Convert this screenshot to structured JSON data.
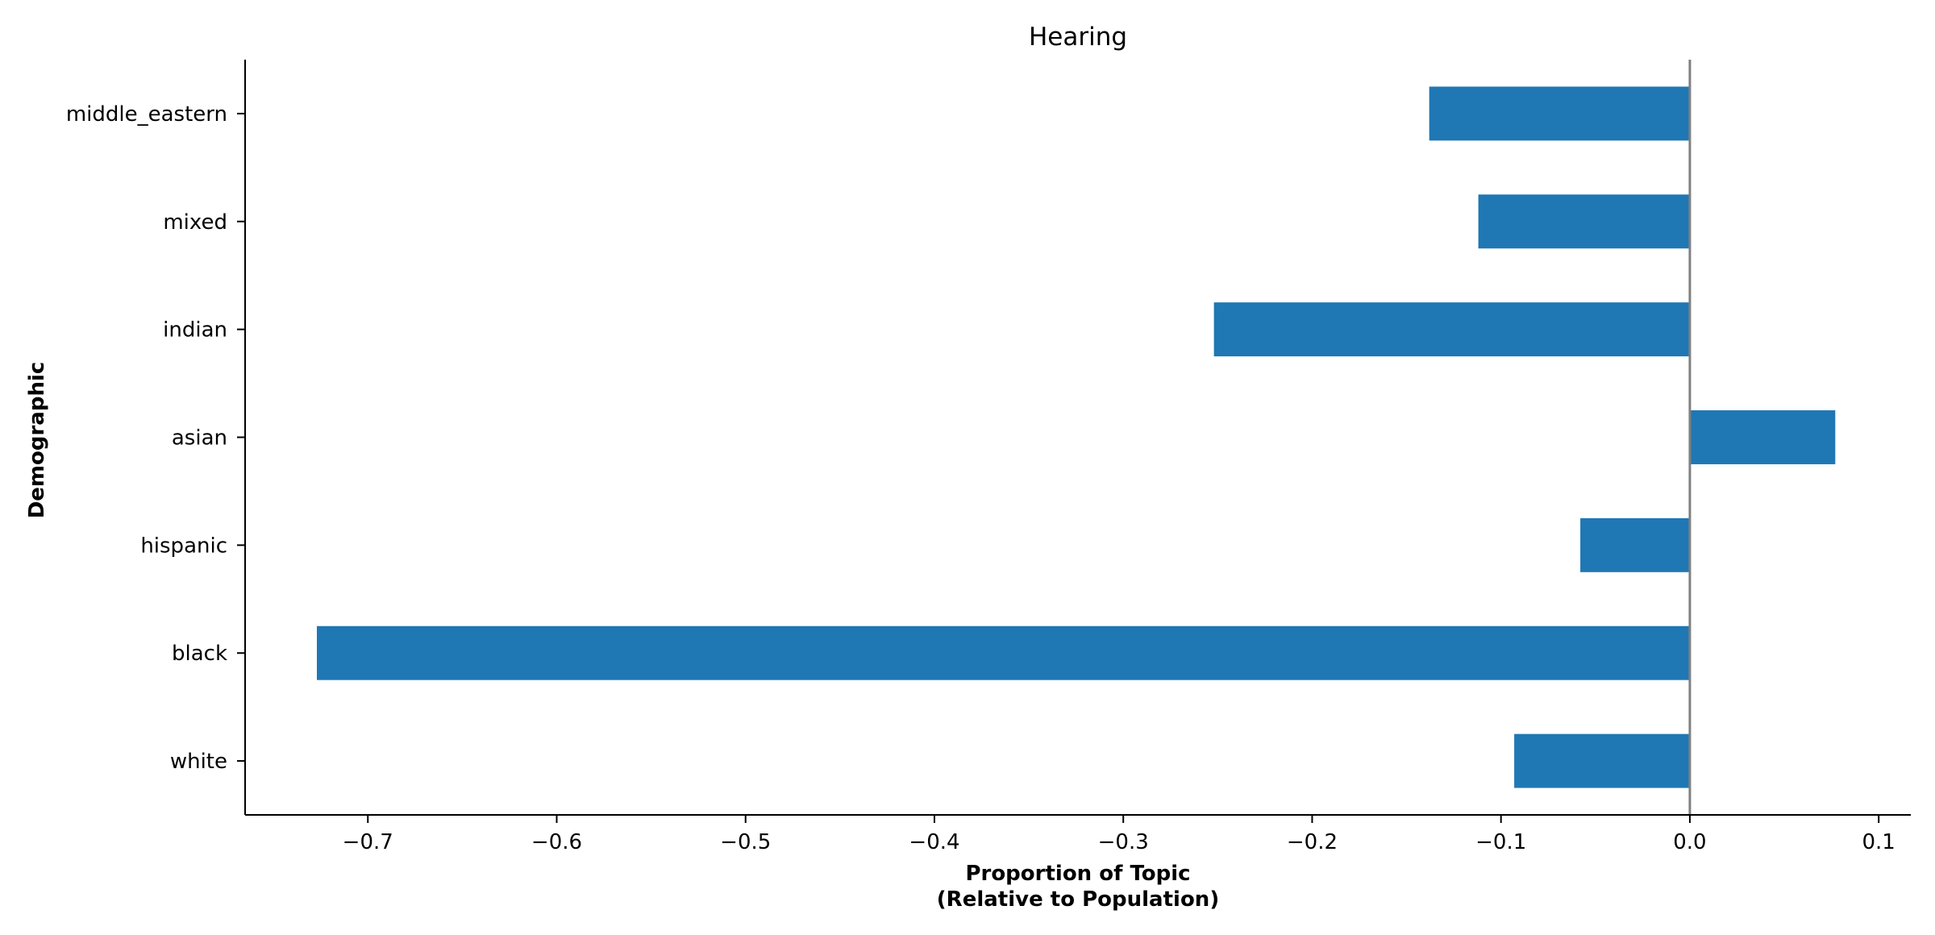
{
  "chart_data": {
    "type": "bar",
    "orientation": "horizontal",
    "title": "Hearing",
    "xlabel_lines": [
      "Proportion of Topic",
      "(Relative to Population)"
    ],
    "ylabel": "Demographic",
    "categories": [
      "white",
      "black",
      "hispanic",
      "asian",
      "indian",
      "mixed",
      "middle_eastern"
    ],
    "values": [
      -0.093,
      -0.727,
      -0.058,
      0.077,
      -0.252,
      -0.112,
      -0.138
    ],
    "xlim": [
      -0.765,
      0.117
    ],
    "xticks": [
      -0.7,
      -0.6,
      -0.5,
      -0.4,
      -0.3,
      -0.2,
      -0.1,
      0.0,
      0.1
    ],
    "xtick_labels": [
      "−0.7",
      "−0.6",
      "−0.5",
      "−0.4",
      "−0.3",
      "−0.2",
      "−0.1",
      "0.0",
      "0.1"
    ],
    "reference_line": 0.0,
    "grid": false,
    "legend": "none",
    "colors": {
      "bar": "#1f77b4",
      "zero_line": "#808080",
      "axis": "#000000"
    }
  }
}
